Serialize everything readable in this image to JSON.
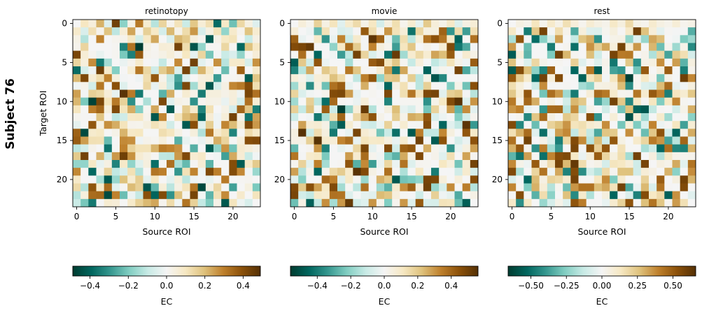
{
  "figure": {
    "subject_label": "Subject 76"
  },
  "chart_data": [
    {
      "type": "heatmap",
      "title": "retinotopy",
      "xlabel": "Source ROI",
      "ylabel": "Target ROI",
      "x_ticks": [
        "0",
        "5",
        "10",
        "15",
        "20"
      ],
      "y_ticks": [
        "0",
        "5",
        "10",
        "15",
        "20"
      ],
      "n_rows": 24,
      "n_cols": 24,
      "xlim": [
        0,
        23
      ],
      "ylim": [
        0,
        23
      ],
      "cmap": "BrBG_r",
      "vmin": -0.49,
      "vmax": 0.49,
      "seed": 761,
      "colorbar": {
        "label": "EC",
        "ticks": [
          -0.4,
          -0.2,
          0.0,
          0.2,
          0.4
        ],
        "tick_labels": [
          "−0.4",
          "−0.2",
          "0.0",
          "0.2",
          "0.4"
        ]
      },
      "values": [
        [
          0.0,
          0.1,
          0.05,
          0.22,
          -0.05,
          0.44,
          -0.18,
          0.03,
          0.31,
          0.07,
          -0.12,
          0.15,
          0.02,
          0.11,
          -0.09,
          0.18,
          0.06,
          0.12,
          -0.38,
          0.09,
          -0.22,
          0.14,
          0.04,
          -0.05
        ],
        [
          0.08,
          -0.06,
          0.12,
          0.02,
          0.19,
          -0.11,
          0.06,
          0.24,
          0.01,
          0.16,
          0.09,
          -0.07,
          0.21,
          0.03,
          0.13,
          0.26,
          -0.06,
          0.04,
          0.11,
          -0.17,
          0.08,
          0.02,
          0.19,
          0.07
        ]
      ],
      "values_note": "first rows read from the figure; remaining cells generated by the page script from seed"
    },
    {
      "type": "heatmap",
      "title": "movie",
      "xlabel": "Source ROI",
      "ylabel": "",
      "x_ticks": [
        "0",
        "5",
        "10",
        "15",
        "20"
      ],
      "y_ticks": [
        "0",
        "5",
        "10",
        "15",
        "20"
      ],
      "n_rows": 24,
      "n_cols": 24,
      "xlim": [
        0,
        23
      ],
      "ylim": [
        0,
        23
      ],
      "cmap": "BrBG_r",
      "vmin": -0.56,
      "vmax": 0.56,
      "seed": 762,
      "colorbar": {
        "label": "EC",
        "ticks": [
          -0.4,
          -0.2,
          0.0,
          0.2,
          0.4
        ],
        "tick_labels": [
          "−0.4",
          "−0.2",
          "0.0",
          "0.2",
          "0.4"
        ]
      },
      "values": [
        [
          0.0,
          0.06,
          0.02,
          0.18,
          0.04,
          0.12,
          -0.05,
          0.09,
          0.15,
          0.03,
          0.11,
          -0.08,
          0.05,
          0.14,
          0.02,
          0.08,
          -0.04,
          0.2,
          0.06,
          0.03,
          0.1,
          -0.06,
          0.04,
          0.07
        ]
      ]
    },
    {
      "type": "heatmap",
      "title": "rest",
      "xlabel": "Source ROI",
      "ylabel": "",
      "x_ticks": [
        "0",
        "5",
        "10",
        "15",
        "20"
      ],
      "y_ticks": [
        "0",
        "5",
        "10",
        "15",
        "20"
      ],
      "n_rows": 24,
      "n_cols": 24,
      "xlim": [
        0,
        23
      ],
      "ylim": [
        0,
        23
      ],
      "cmap": "BrBG_r",
      "vmin": -0.66,
      "vmax": 0.66,
      "seed": 763,
      "colorbar": {
        "label": "EC",
        "ticks": [
          -0.5,
          -0.25,
          0.0,
          0.25,
          0.5
        ],
        "tick_labels": [
          "−0.50",
          "−0.25",
          "0.00",
          "0.25",
          "0.50"
        ]
      },
      "values": [
        [
          0.0,
          0.05,
          0.03,
          0.14,
          0.02,
          0.11,
          0.04,
          0.16,
          0.07,
          0.02,
          0.09,
          0.05,
          0.03,
          0.12,
          0.06,
          0.18,
          0.04,
          0.02,
          0.1,
          0.05,
          0.03,
          0.08,
          0.02,
          0.04
        ]
      ]
    }
  ]
}
